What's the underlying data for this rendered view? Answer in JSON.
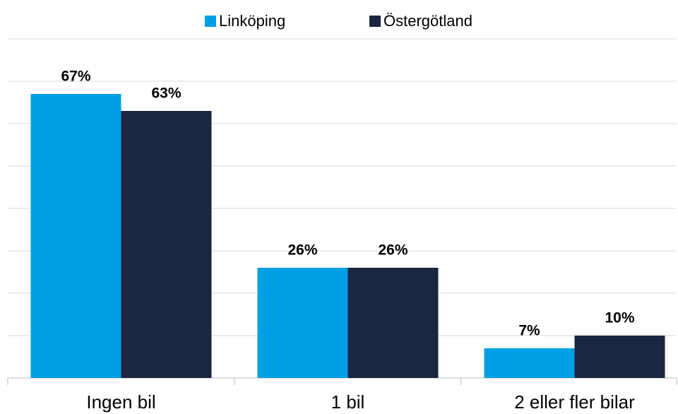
{
  "chart_data": {
    "type": "bar",
    "categories": [
      "Ingen bil",
      "1 bil",
      "2 eller fler bilar"
    ],
    "series": [
      {
        "name": "Linköping",
        "color": "#009fe3",
        "values": [
          67,
          26,
          7
        ],
        "value_labels": [
          "67%",
          "26%",
          "7%"
        ]
      },
      {
        "name": "Östergötland",
        "color": "#1b2640",
        "values": [
          63,
          26,
          10
        ],
        "value_labels": [
          "63%",
          "26%",
          "10%"
        ]
      }
    ],
    "ylim": [
      0,
      80
    ],
    "yticks": [
      0,
      10,
      20,
      30,
      40,
      50,
      60,
      70,
      80
    ],
    "grid": true,
    "legend": "top"
  }
}
